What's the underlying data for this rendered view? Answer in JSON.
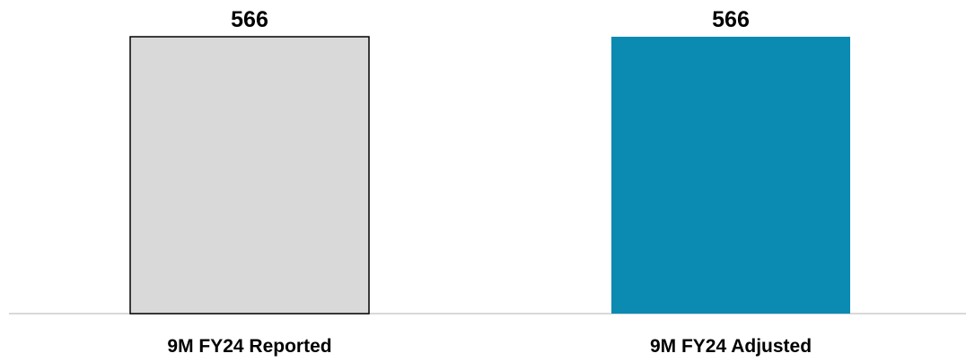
{
  "chart_data": {
    "type": "bar",
    "title": "",
    "xlabel": "",
    "ylabel": "",
    "categories": [
      "9M FY24 Reported",
      "9M FY24 Adjusted"
    ],
    "values": [
      566,
      566
    ],
    "data_labels": [
      "566",
      "566"
    ],
    "ylim": [
      0,
      566
    ],
    "grid": false,
    "legend": "none",
    "colors": {
      "bar_fills": [
        "#d9d9d9",
        "#0b8ab2"
      ],
      "bar_strokes": [
        "#000000",
        "none"
      ],
      "baseline": "#d9d9d9"
    }
  }
}
